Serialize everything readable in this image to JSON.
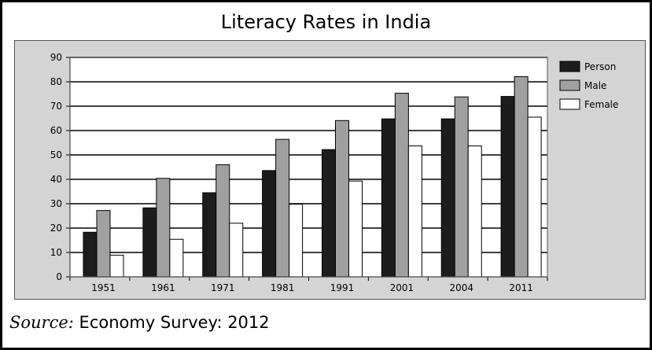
{
  "chart_data": {
    "type": "bar",
    "title": "Literacy Rates in India",
    "categories": [
      "1951",
      "1961",
      "1971",
      "1981",
      "1991",
      "2001",
      "2004",
      "2011"
    ],
    "series": [
      {
        "name": "Person",
        "color": "#1c1c1c",
        "values": [
          18.3,
          28.3,
          34.5,
          43.6,
          52.2,
          64.8,
          64.8,
          74.0
        ]
      },
      {
        "name": "Male",
        "color": "#a0a0a0",
        "values": [
          27.2,
          40.4,
          46.0,
          56.4,
          64.1,
          75.3,
          73.8,
          82.1
        ]
      },
      {
        "name": "Female",
        "color": "#ffffff",
        "values": [
          8.9,
          15.4,
          22.0,
          29.8,
          39.3,
          53.7,
          53.7,
          65.5
        ]
      }
    ],
    "y_ticks": [
      "0",
      "10",
      "20",
      "30",
      "40",
      "50",
      "60",
      "70",
      "80",
      "90"
    ],
    "ylim": [
      0,
      90
    ],
    "xlabel": "",
    "ylabel": "",
    "grid": true,
    "legend": "right"
  },
  "source": {
    "label": "Source:",
    "text": "Economy Survey: 2012"
  }
}
